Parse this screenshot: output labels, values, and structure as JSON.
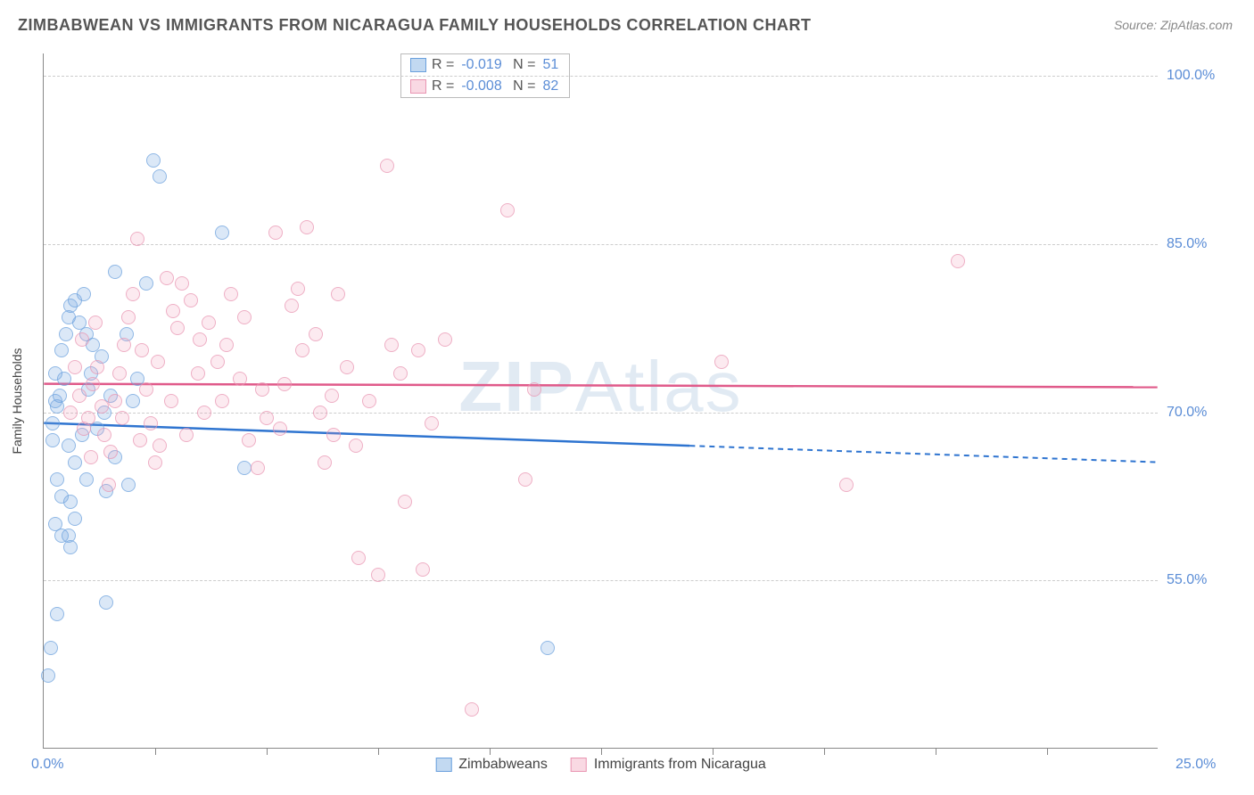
{
  "title": "ZIMBABWEAN VS IMMIGRANTS FROM NICARAGUA FAMILY HOUSEHOLDS CORRELATION CHART",
  "source": "Source: ZipAtlas.com",
  "y_axis_label": "Family Households",
  "watermark": "ZIPAtlas",
  "chart": {
    "type": "scatter",
    "xlim": [
      0,
      25
    ],
    "ylim": [
      40,
      102
    ],
    "y_ticks": [
      55.0,
      70.0,
      85.0,
      100.0
    ],
    "x_ticks_minor_step": 2.5,
    "x_origin_label": "0.0%",
    "x_end_label": "25.0%",
    "grid_color": "#cccccc",
    "axis_color": "#888888",
    "background_color": "#ffffff",
    "point_radius": 8,
    "series": [
      {
        "name": "Zimbabweans",
        "color_fill": "rgba(120,170,225,0.35)",
        "color_stroke": "#6aa0dd",
        "R": -0.019,
        "N": 51,
        "trend": {
          "y_start": 69.0,
          "y_end": 65.5,
          "solid_until_x": 14.5,
          "color": "#2e74d0"
        },
        "points": [
          [
            0.2,
            69.0
          ],
          [
            0.2,
            67.5
          ],
          [
            0.3,
            70.5
          ],
          [
            0.25,
            71.0
          ],
          [
            0.3,
            64.0
          ],
          [
            0.4,
            62.5
          ],
          [
            0.25,
            60.0
          ],
          [
            0.4,
            59.0
          ],
          [
            0.55,
            59.0
          ],
          [
            0.7,
            60.5
          ],
          [
            0.6,
            58.0
          ],
          [
            0.15,
            49.0
          ],
          [
            0.1,
            46.5
          ],
          [
            0.3,
            52.0
          ],
          [
            1.4,
            53.0
          ],
          [
            0.5,
            77.0
          ],
          [
            0.55,
            78.5
          ],
          [
            0.6,
            79.5
          ],
          [
            0.7,
            80.0
          ],
          [
            0.8,
            78.0
          ],
          [
            0.9,
            80.5
          ],
          [
            0.95,
            77.0
          ],
          [
            1.0,
            72.0
          ],
          [
            1.05,
            73.5
          ],
          [
            1.1,
            76.0
          ],
          [
            1.3,
            75.0
          ],
          [
            1.35,
            70.0
          ],
          [
            1.5,
            71.5
          ],
          [
            1.6,
            82.5
          ],
          [
            1.85,
            77.0
          ],
          [
            2.0,
            71.0
          ],
          [
            2.1,
            73.0
          ],
          [
            2.3,
            81.5
          ],
          [
            2.45,
            92.5
          ],
          [
            2.6,
            91.0
          ],
          [
            4.0,
            86.0
          ],
          [
            4.5,
            65.0
          ],
          [
            11.3,
            49.0
          ],
          [
            0.35,
            71.5
          ],
          [
            0.45,
            73.0
          ],
          [
            0.55,
            67.0
          ],
          [
            0.7,
            65.5
          ],
          [
            0.85,
            68.0
          ],
          [
            0.95,
            64.0
          ],
          [
            1.2,
            68.5
          ],
          [
            1.4,
            63.0
          ],
          [
            1.6,
            66.0
          ],
          [
            1.9,
            63.5
          ],
          [
            0.4,
            75.5
          ],
          [
            0.25,
            73.5
          ],
          [
            0.6,
            62.0
          ]
        ]
      },
      {
        "name": "Immigrants from Nicaragua",
        "color_fill": "rgba(240,160,185,0.3)",
        "color_stroke": "#e995b2",
        "R": -0.008,
        "N": 82,
        "trend": {
          "y_start": 72.5,
          "y_end": 72.2,
          "solid_until_x": 25,
          "color": "#e05a8a"
        },
        "points": [
          [
            0.6,
            70.0
          ],
          [
            0.8,
            71.5
          ],
          [
            0.9,
            68.5
          ],
          [
            1.0,
            69.5
          ],
          [
            1.1,
            72.5
          ],
          [
            1.2,
            74.0
          ],
          [
            1.3,
            70.5
          ],
          [
            1.35,
            68.0
          ],
          [
            1.5,
            66.5
          ],
          [
            1.6,
            71.0
          ],
          [
            1.7,
            73.5
          ],
          [
            1.8,
            76.0
          ],
          [
            1.9,
            78.5
          ],
          [
            2.0,
            80.5
          ],
          [
            2.1,
            85.5
          ],
          [
            2.2,
            75.5
          ],
          [
            2.3,
            72.0
          ],
          [
            2.4,
            69.0
          ],
          [
            2.5,
            65.5
          ],
          [
            2.6,
            67.0
          ],
          [
            2.75,
            82.0
          ],
          [
            2.9,
            79.0
          ],
          [
            3.0,
            77.5
          ],
          [
            3.1,
            81.5
          ],
          [
            3.3,
            80.0
          ],
          [
            3.5,
            76.5
          ],
          [
            3.7,
            78.0
          ],
          [
            3.9,
            74.5
          ],
          [
            4.0,
            71.0
          ],
          [
            4.2,
            80.5
          ],
          [
            4.4,
            73.0
          ],
          [
            4.6,
            67.5
          ],
          [
            4.8,
            65.0
          ],
          [
            5.0,
            69.5
          ],
          [
            5.2,
            86.0
          ],
          [
            5.4,
            72.5
          ],
          [
            5.55,
            79.5
          ],
          [
            5.7,
            81.0
          ],
          [
            5.9,
            86.5
          ],
          [
            6.1,
            77.0
          ],
          [
            6.3,
            65.5
          ],
          [
            6.45,
            71.5
          ],
          [
            6.6,
            80.5
          ],
          [
            6.8,
            74.0
          ],
          [
            7.0,
            67.0
          ],
          [
            7.05,
            57.0
          ],
          [
            7.5,
            55.5
          ],
          [
            7.7,
            92.0
          ],
          [
            8.0,
            73.5
          ],
          [
            8.1,
            62.0
          ],
          [
            8.4,
            75.5
          ],
          [
            8.5,
            56.0
          ],
          [
            8.7,
            69.0
          ],
          [
            9.0,
            76.5
          ],
          [
            9.6,
            43.5
          ],
          [
            10.4,
            88.0
          ],
          [
            10.8,
            64.0
          ],
          [
            11.0,
            72.0
          ],
          [
            15.2,
            74.5
          ],
          [
            18.0,
            63.5
          ],
          [
            20.5,
            83.5
          ],
          [
            1.05,
            66.0
          ],
          [
            1.45,
            63.5
          ],
          [
            1.75,
            69.5
          ],
          [
            2.15,
            67.5
          ],
          [
            2.55,
            74.5
          ],
          [
            2.85,
            71.0
          ],
          [
            3.2,
            68.0
          ],
          [
            3.45,
            73.5
          ],
          [
            3.6,
            70.0
          ],
          [
            4.1,
            76.0
          ],
          [
            4.5,
            78.5
          ],
          [
            4.9,
            72.0
          ],
          [
            5.3,
            68.5
          ],
          [
            5.8,
            75.5
          ],
          [
            6.2,
            70.0
          ],
          [
            6.5,
            68.0
          ],
          [
            7.3,
            71.0
          ],
          [
            7.8,
            76.0
          ],
          [
            0.7,
            74.0
          ],
          [
            0.85,
            76.5
          ],
          [
            1.15,
            78.0
          ]
        ]
      }
    ]
  },
  "correlation_legend": {
    "rows": [
      {
        "swatch": "blue",
        "R": "-0.019",
        "N": "51"
      },
      {
        "swatch": "pink",
        "R": "-0.008",
        "N": "82"
      }
    ]
  },
  "bottom_legend": [
    {
      "swatch": "blue",
      "label": "Zimbabweans"
    },
    {
      "swatch": "pink",
      "label": "Immigrants from Nicaragua"
    }
  ]
}
